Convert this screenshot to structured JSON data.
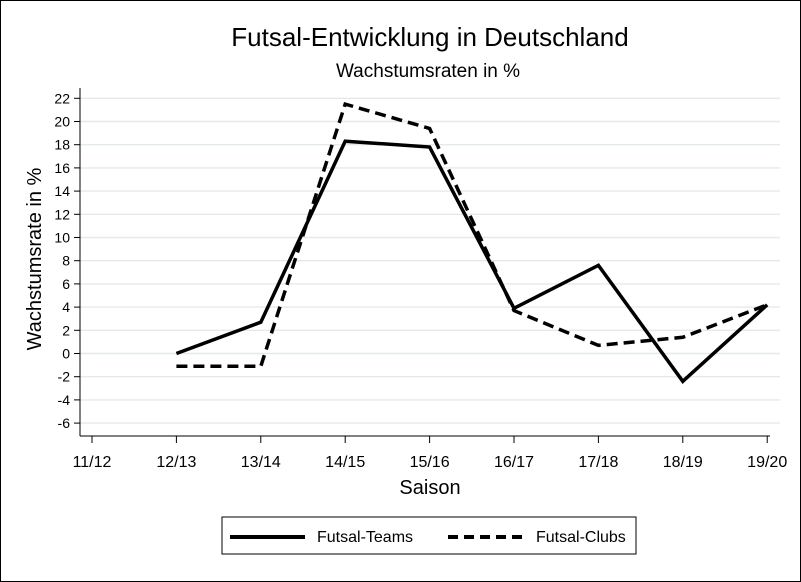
{
  "chart_data": {
    "type": "line",
    "title": "Futsal-Entwicklung in Deutschland",
    "subtitle": "Wachstumsraten in %",
    "xlabel": "Saison",
    "ylabel": "Wachstumsrate in %",
    "categories": [
      "11/12",
      "12/13",
      "13/14",
      "14/15",
      "15/16",
      "16/17",
      "17/18",
      "18/19",
      "19/20"
    ],
    "yticks": [
      -6,
      -4,
      -2,
      0,
      2,
      4,
      6,
      8,
      10,
      12,
      14,
      16,
      18,
      20,
      22
    ],
    "ylim": [
      -7,
      23
    ],
    "grid": true,
    "legend_position": "bottom",
    "series": [
      {
        "name": "Futsal-Teams",
        "style": "solid",
        "values": [
          null,
          0.0,
          2.7,
          18.3,
          17.8,
          3.9,
          7.6,
          -2.4,
          4.2
        ]
      },
      {
        "name": "Futsal-Clubs",
        "style": "dashed",
        "values": [
          null,
          -1.1,
          -1.1,
          21.5,
          19.4,
          3.7,
          0.7,
          1.4,
          4.2
        ]
      }
    ]
  }
}
